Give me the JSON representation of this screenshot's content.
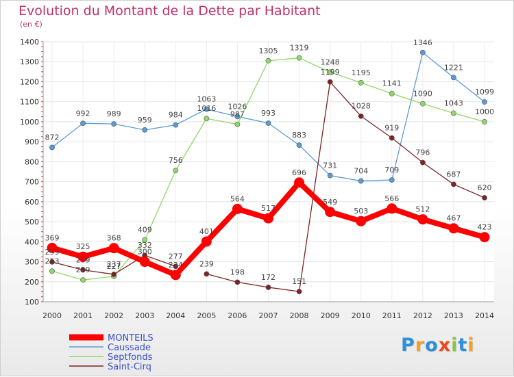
{
  "title": "Evolution du Montant de la Dette par Habitant",
  "unit": "(en €)",
  "brand": {
    "text": "Proxiti",
    "letter_colors": [
      "#2f8fd8",
      "#f0a31c",
      "#2f8fd8",
      "#e84a1f",
      "#8cc53f",
      "#2f8fd8",
      "#f0a31c"
    ]
  },
  "chart_data": {
    "type": "line",
    "title": "Evolution du Montant de la Dette par Habitant",
    "ylabel": "(en €)",
    "x": [
      "2000",
      "2001",
      "2002",
      "2003",
      "2004",
      "2005",
      "2006",
      "2007",
      "2008",
      "2009",
      "2010",
      "2011",
      "2012",
      "2013",
      "2014"
    ],
    "yticks": [
      100,
      200,
      300,
      400,
      500,
      600,
      700,
      800,
      900,
      1000,
      1100,
      1200,
      1300,
      1400
    ],
    "ylim": [
      100,
      1400
    ],
    "grid": true,
    "legend_position": "bottom-left",
    "series": [
      {
        "name": "MONTEILS",
        "color": "#ff0000",
        "width": 8,
        "values": [
          369,
          325,
          368,
          300,
          234,
          401,
          564,
          517,
          696,
          549,
          503,
          566,
          512,
          467,
          423
        ]
      },
      {
        "name": "Caussade",
        "color": "#5b9bd5",
        "width": 1.3,
        "values": [
          872,
          992,
          989,
          959,
          984,
          1063,
          1026,
          993,
          883,
          731,
          704,
          709,
          1346,
          1221,
          1099
        ]
      },
      {
        "name": "Septfonds",
        "color": "#8fd966",
        "width": 1.3,
        "values": [
          253,
          209,
          227,
          409,
          756,
          1016,
          987,
          1305,
          1319,
          1248,
          1195,
          1141,
          1090,
          1043,
          1000
        ]
      },
      {
        "name": "Saint-Cirq",
        "color": "#7b2323",
        "width": 1.3,
        "values": [
          299,
          259,
          237,
          332,
          277,
          null,
          null,
          null,
          null,
          null,
          null,
          null,
          null,
          null,
          null
        ]
      },
      {
        "name": "",
        "color": "#7b2323",
        "width": 1.3,
        "values": [
          null,
          null,
          null,
          null,
          null,
          239,
          198,
          172,
          151,
          1199,
          1028,
          919,
          796,
          687,
          620
        ]
      }
    ],
    "labels": [
      [
        "369",
        "325",
        "368",
        "300",
        "234",
        "401",
        "564",
        "517",
        "696",
        "549",
        "503",
        "566",
        "512",
        "467",
        "423"
      ],
      [
        "872",
        "992",
        "989",
        "959",
        "984",
        "1063",
        "1026",
        "993",
        "883",
        "731",
        "704",
        "709",
        "1346",
        "1221",
        "1099"
      ],
      [
        "253",
        "209",
        "227",
        "409",
        "756",
        "1016",
        "987",
        "1305",
        "1319",
        "1248",
        "1195",
        "1141",
        "1090",
        "1043",
        "1000"
      ],
      [
        "299",
        "259",
        "237",
        "332",
        "277",
        "239",
        "198",
        "172",
        "151",
        "1199",
        "1028",
        "919",
        "796",
        "687",
        "620"
      ]
    ]
  }
}
